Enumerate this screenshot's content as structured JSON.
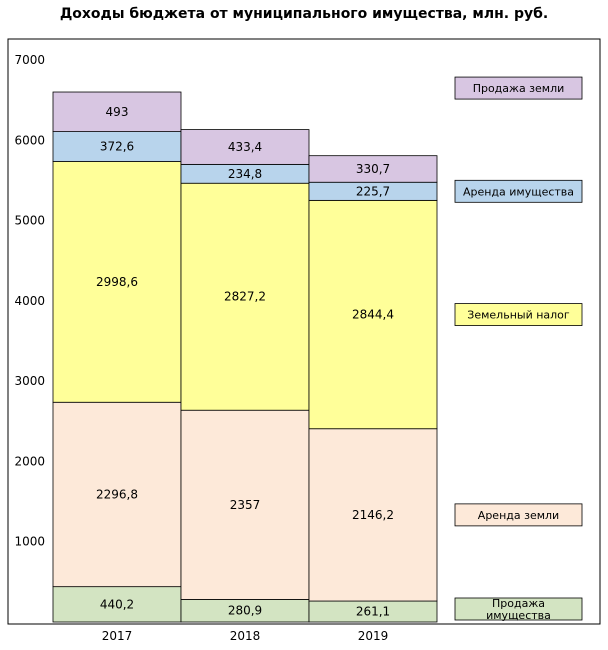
{
  "chart_data": {
    "type": "bar",
    "title": "Доходы бюджета от муниципального имущества, млн. руб.",
    "categories": [
      "2017",
      "2018",
      "2019"
    ],
    "ylim": [
      0,
      7000
    ],
    "yticks": [
      "1000",
      "2000",
      "3000",
      "4000",
      "5000",
      "6000",
      "7000"
    ],
    "series": [
      {
        "name": "Продажа имущества",
        "name_lines": [
          "Продажа",
          "имущества"
        ],
        "color": "#d3e4c2",
        "values": [
          440.2,
          280.9,
          261.1
        ],
        "labels": [
          "440,2",
          "280,9",
          "261,1"
        ]
      },
      {
        "name": "Аренда земли",
        "color": "#fde9d9",
        "values": [
          2296.8,
          2357,
          2146.2
        ],
        "labels": [
          "2296,8",
          "2357",
          "2146,2"
        ]
      },
      {
        "name": "Земельный налог",
        "color": "#ffff99",
        "values": [
          2998.6,
          2827.2,
          2844.4
        ],
        "labels": [
          "2998,6",
          "2827,2",
          "2844,4"
        ]
      },
      {
        "name": "Аренда имущества",
        "color": "#b8d4ec",
        "values": [
          372.6,
          234.8,
          225.7
        ],
        "labels": [
          "372,6",
          "234,8",
          "225,7"
        ]
      },
      {
        "name": "Продажа земли",
        "color": "#d8c6e2",
        "values": [
          493,
          433.4,
          330.7
        ],
        "labels": [
          "493",
          "433,4",
          "330,7"
        ]
      }
    ],
    "legend_position": "right",
    "grid": false
  }
}
